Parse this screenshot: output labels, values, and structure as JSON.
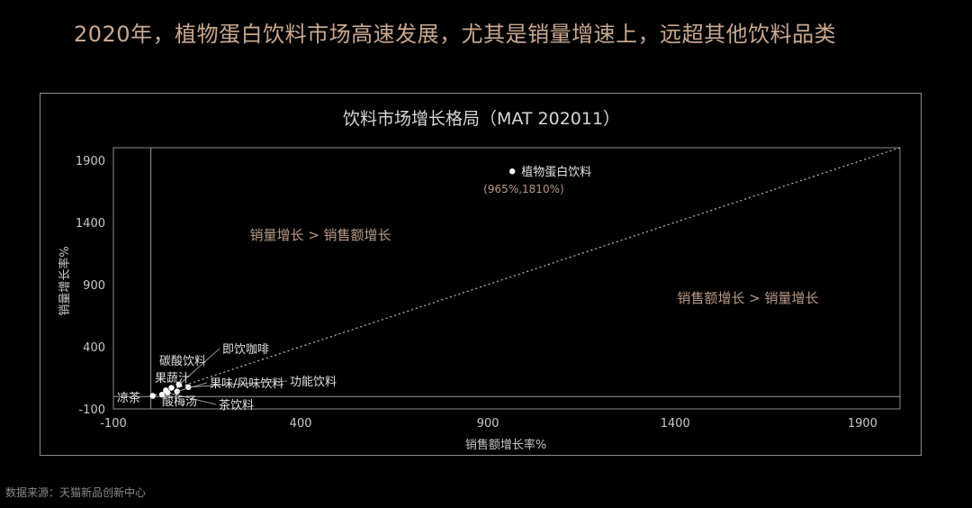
{
  "headline": "2020年，植物蛋白饮料市场高速发展，尤其是销量增速上，远超其他饮料品类",
  "source": "数据来源：天猫新品创新中心",
  "colors": {
    "background": "#000000",
    "headline": "#c9a88e",
    "region_label": "#b99a84",
    "axis_text": "#c8c8c8",
    "point": "#ffffff",
    "frame": "#8c8c8c"
  },
  "chart_data": {
    "type": "scatter",
    "title": "饮料市场增长格局（MAT 202011）",
    "xlabel": "销售额增长率%",
    "ylabel": "销量增长率%",
    "xlim": [
      -100,
      2000
    ],
    "ylim": [
      -100,
      2000
    ],
    "xticks": [
      -100,
      400,
      900,
      1400,
      1900
    ],
    "yticks": [
      -100,
      400,
      900,
      1400,
      1900
    ],
    "xtick_labels": [
      "-100",
      "400",
      "900",
      "1400",
      "1900"
    ],
    "ytick_labels": [
      "-100",
      "400",
      "900",
      "1400",
      "1900"
    ],
    "reference_lines": {
      "vertical_x": 0,
      "horizontal_y": 0,
      "diagonal": "y=x"
    },
    "grid": false,
    "region_labels": [
      "销量增长 > 销售额增长",
      "销售额增长 > 销量增长"
    ],
    "points": [
      {
        "label": "植物蛋白饮料",
        "x": 965,
        "y": 1810,
        "annotation": "(965%,1810%)"
      },
      {
        "label": "即饮咖啡",
        "x": 75,
        "y": 95
      },
      {
        "label": "碳酸饮料",
        "x": 55,
        "y": 70
      },
      {
        "label": "果蔬汁",
        "x": 40,
        "y": 50
      },
      {
        "label": "功能饮料",
        "x": 100,
        "y": 75
      },
      {
        "label": "果味/风味饮料",
        "x": 70,
        "y": 40
      },
      {
        "label": "凉茶",
        "x": 5,
        "y": 5
      },
      {
        "label": "酸梅汤",
        "x": 30,
        "y": 15
      },
      {
        "label": "茶饮料",
        "x": 45,
        "y": 30
      }
    ]
  }
}
